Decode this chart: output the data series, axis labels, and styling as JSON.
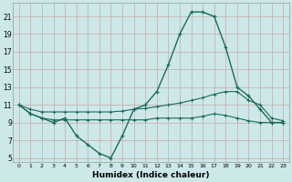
{
  "xlabel": "Humidex (Indice chaleur)",
  "bg_color": "#cde8e8",
  "grid_color": "#c8a8a8",
  "line_color": "#1a6b5a",
  "xlim": [
    -0.5,
    23.5
  ],
  "ylim": [
    4.5,
    22.5
  ],
  "xticks": [
    0,
    1,
    2,
    3,
    4,
    5,
    6,
    7,
    8,
    9,
    10,
    11,
    12,
    13,
    14,
    15,
    16,
    17,
    18,
    19,
    20,
    21,
    22,
    23
  ],
  "yticks": [
    5,
    7,
    9,
    11,
    13,
    15,
    17,
    19,
    21
  ],
  "curve_main_x": [
    0,
    1,
    2,
    3,
    4,
    5,
    6,
    7,
    8,
    9,
    10,
    11,
    12,
    13,
    14,
    15,
    16,
    17,
    18,
    19,
    20,
    21,
    22,
    23
  ],
  "curve_main_y": [
    11,
    10,
    9.5,
    9,
    9.5,
    7.5,
    6.5,
    5.5,
    5,
    7.5,
    10.5,
    11,
    12.5,
    15.5,
    19,
    21.5,
    21.5,
    21,
    17.5,
    13,
    12,
    10.5,
    9,
    9
  ],
  "curve_upper_x": [
    0,
    1,
    2,
    3,
    4,
    5,
    6,
    7,
    8,
    9,
    10,
    11,
    12,
    13,
    14,
    15,
    16,
    17,
    18,
    19,
    20,
    21,
    22,
    23
  ],
  "curve_upper_y": [
    11,
    10.5,
    10.2,
    10.2,
    10.2,
    10.2,
    10.2,
    10.2,
    10.2,
    10.3,
    10.5,
    10.6,
    10.8,
    11.0,
    11.2,
    11.5,
    11.8,
    12.2,
    12.5,
    12.5,
    11.5,
    11.0,
    9.5,
    9.2
  ],
  "curve_lower_x": [
    0,
    1,
    2,
    3,
    4,
    5,
    6,
    7,
    8,
    9,
    10,
    11,
    12,
    13,
    14,
    15,
    16,
    17,
    18,
    19,
    20,
    21,
    22,
    23
  ],
  "curve_lower_y": [
    11,
    10.0,
    9.5,
    9.3,
    9.3,
    9.3,
    9.3,
    9.3,
    9.3,
    9.3,
    9.3,
    9.3,
    9.5,
    9.5,
    9.5,
    9.5,
    9.7,
    10.0,
    9.8,
    9.5,
    9.2,
    9.0,
    9.0,
    9.0
  ]
}
